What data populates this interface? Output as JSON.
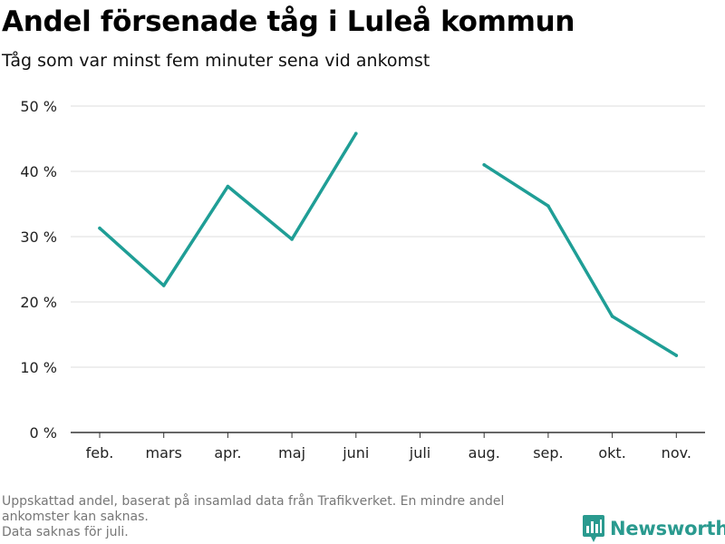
{
  "header": {
    "title": "Andel försenade tåg i Luleå kommun",
    "subtitle": "Tåg som var minst fem minuter sena vid ankomst"
  },
  "chart_data": {
    "type": "line",
    "categories": [
      "feb.",
      "mars",
      "apr.",
      "maj",
      "juni",
      "juli",
      "aug.",
      "sep.",
      "okt.",
      "nov."
    ],
    "series": [
      {
        "values": [
          31.3,
          22.5,
          37.7,
          29.6,
          45.8,
          null,
          41.0,
          34.7,
          17.8,
          11.8
        ]
      }
    ],
    "ylim": [
      0,
      50
    ],
    "yticks": [
      0,
      10,
      20,
      30,
      40,
      50
    ],
    "ytick_labels": [
      "0 %",
      "10 %",
      "20 %",
      "30 %",
      "40 %",
      "50 %"
    ],
    "xlabel": "",
    "ylabel": "",
    "grid": true,
    "line_color": "#1f9e96"
  },
  "footer": {
    "notes": [
      "Uppskattad andel, baserat på insamlad data från Trafikverket. En mindre andel",
      "ankomster kan saknas.",
      "Data saknas för juli."
    ],
    "brand": "Newsworthy",
    "brand_icon": "bar-chart-speech-bubble-icon",
    "brand_color": "#2a9a8f"
  }
}
